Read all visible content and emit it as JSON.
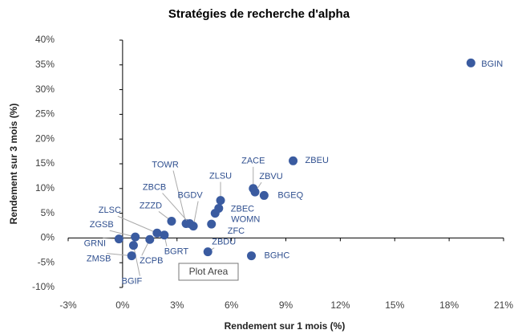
{
  "chart_data": {
    "type": "scatter",
    "title": "Stratégies de recherche d'alpha",
    "xlabel": "Rendement sur 1 mois (%)",
    "ylabel": "Rendement sur 3 mois (%)",
    "series": [
      {
        "color": "#3a5ba0",
        "labels": [
          "BGIN",
          "ZBEU",
          "ZACE",
          "ZBVU",
          "BGEQ",
          "ZLSU",
          "ZBEC",
          "WOMN",
          "ZFC",
          "TOWR",
          "ZBCB",
          "BGDV",
          "ZZZD",
          "ZLSC",
          "ZGSB",
          "GRNI",
          "ZCPB",
          "BGRT",
          "BGIF",
          "ZMSB",
          "ZBDU",
          "BGHC"
        ],
        "x": [
          19.2,
          9.4,
          7.2,
          7.3,
          7.8,
          5.4,
          5.3,
          5.1,
          4.9,
          3.5,
          3.7,
          3.9,
          2.7,
          1.9,
          0.7,
          -0.2,
          1.5,
          2.3,
          0.6,
          0.5,
          4.7,
          7.1
        ],
        "values": [
          35.4,
          15.6,
          10.0,
          9.3,
          8.6,
          7.6,
          6.0,
          5.0,
          2.8,
          2.9,
          2.9,
          2.4,
          3.4,
          1.0,
          0.2,
          -0.2,
          -0.3,
          0.6,
          -1.5,
          -3.6,
          -2.8,
          -3.6
        ]
      }
    ],
    "xlim": [
      -3,
      21
    ],
    "xticks": [
      {
        "value": -3,
        "label": "-3%"
      },
      {
        "value": 0,
        "label": "0%"
      },
      {
        "value": 3,
        "label": "3%"
      },
      {
        "value": 6,
        "label": "6%"
      },
      {
        "value": 9,
        "label": "9%"
      },
      {
        "value": 12,
        "label": "12%"
      },
      {
        "value": 15,
        "label": "15%"
      },
      {
        "value": 18,
        "label": "18%"
      },
      {
        "value": 21,
        "label": "21%"
      }
    ],
    "ylim": [
      -10,
      40
    ],
    "yticks": [
      {
        "value": -10,
        "label": "-10%"
      },
      {
        "value": -5,
        "label": "-5%"
      },
      {
        "value": 0,
        "label": "0%"
      },
      {
        "value": 5,
        "label": "5%"
      },
      {
        "value": 10,
        "label": "10%"
      },
      {
        "value": 15,
        "label": "15%"
      },
      {
        "value": 20,
        "label": "20%"
      },
      {
        "value": 25,
        "label": "25%"
      },
      {
        "value": 30,
        "label": "30%"
      },
      {
        "value": 35,
        "label": "35%"
      },
      {
        "value": 40,
        "label": "40%"
      }
    ],
    "tooltip": "Plot Area"
  }
}
